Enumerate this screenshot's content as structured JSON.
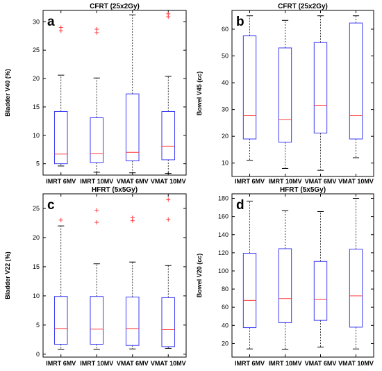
{
  "chart_data": [
    {
      "type": "box",
      "panel_letter": "a",
      "title": "CFRT (25x2Gy)",
      "ylabel": "Bladder V40 (%)",
      "categories": [
        "IMRT 6MV",
        "IMRT 10MV",
        "VMAT 6MV",
        "VMAT 10MV"
      ],
      "ylim": [
        3,
        32
      ],
      "yticks": [
        5,
        10,
        15,
        20,
        25,
        30
      ],
      "boxes": [
        {
          "min": 4.6,
          "q1": 5.0,
          "median": 6.7,
          "q3": 14.2,
          "max": 20.6,
          "outliers": [
            28.4,
            29.0
          ]
        },
        {
          "min": 3.5,
          "q1": 5.2,
          "median": 6.8,
          "q3": 13.1,
          "max": 20.1,
          "outliers": [
            28.1,
            28.7
          ]
        },
        {
          "min": 3.4,
          "q1": 5.5,
          "median": 7.0,
          "q3": 17.3,
          "max": 31.2,
          "outliers": []
        },
        {
          "min": 3.3,
          "q1": 5.7,
          "median": 8.1,
          "q3": 14.2,
          "max": 20.4,
          "outliers": [
            30.9,
            31.4
          ]
        }
      ]
    },
    {
      "type": "box",
      "panel_letter": "b",
      "title": "CFRT (25x2Gy)",
      "ylabel": "Bowel V45 (cc)",
      "categories": [
        "IMRT 6MV",
        "IMRT 10MV",
        "VMAT 6MV",
        "VMAT 10MV"
      ],
      "ylim": [
        5,
        67
      ],
      "yticks": [
        10,
        20,
        30,
        40,
        50,
        60
      ],
      "boxes": [
        {
          "min": 11.0,
          "q1": 19.0,
          "median": 27.7,
          "q3": 57.5,
          "max": 65.0,
          "outliers": []
        },
        {
          "min": 8.0,
          "q1": 17.8,
          "median": 26.2,
          "q3": 53.0,
          "max": 63.3,
          "outliers": []
        },
        {
          "min": 7.3,
          "q1": 21.2,
          "median": 31.6,
          "q3": 55.0,
          "max": 65.0,
          "outliers": []
        },
        {
          "min": 12.0,
          "q1": 19.0,
          "median": 27.7,
          "q3": 62.3,
          "max": 65.0,
          "outliers": []
        }
      ]
    },
    {
      "type": "box",
      "panel_letter": "c",
      "title": "HFRT (5x5Gy)",
      "ylabel": "Bladder V22 (%)",
      "categories": [
        "IMRT 6MV",
        "IMRT 10MV",
        "VMAT 6MV",
        "VMAT 10MV"
      ],
      "ylim": [
        -0.5,
        27.5
      ],
      "yticks": [
        0,
        5,
        10,
        15,
        20,
        25
      ],
      "boxes": [
        {
          "min": 0.8,
          "q1": 1.7,
          "median": 4.4,
          "q3": 9.9,
          "max": 22.0,
          "outliers": [
            23.0
          ]
        },
        {
          "min": 0.8,
          "q1": 1.7,
          "median": 4.3,
          "q3": 9.9,
          "max": 15.5,
          "outliers": [
            22.6,
            24.7
          ]
        },
        {
          "min": 0.9,
          "q1": 1.5,
          "median": 4.4,
          "q3": 9.8,
          "max": 15.8,
          "outliers": [
            22.9,
            23.4
          ]
        },
        {
          "min": 1.0,
          "q1": 1.3,
          "median": 4.2,
          "q3": 9.7,
          "max": 15.2,
          "outliers": [
            23.1,
            26.5
          ]
        }
      ]
    },
    {
      "type": "box",
      "panel_letter": "d",
      "title": "HFRT (5x5Gy)",
      "ylabel": "Bowel V20 (cc)",
      "categories": [
        "IMRT 6MV",
        "IMRT 10MV",
        "VMAT 6MV",
        "VMAT 10MV"
      ],
      "ylim": [
        5,
        185
      ],
      "yticks": [
        20,
        40,
        60,
        80,
        100,
        120,
        140,
        160,
        180
      ],
      "boxes": [
        {
          "min": 14.0,
          "q1": 37.5,
          "median": 67.5,
          "q3": 119.5,
          "max": 177.0,
          "outliers": []
        },
        {
          "min": 13.5,
          "q1": 43.0,
          "median": 69.5,
          "q3": 124.5,
          "max": 166.5,
          "outliers": []
        },
        {
          "min": 16.0,
          "q1": 45.5,
          "median": 68.5,
          "q3": 110.5,
          "max": 165.5,
          "outliers": []
        },
        {
          "min": 14.0,
          "q1": 38.0,
          "median": 72.5,
          "q3": 124.0,
          "max": 180.0,
          "outliers": []
        }
      ]
    }
  ],
  "colors": {
    "box": "#3b3bf5",
    "median": "#ff3b3b",
    "outlier": "#ff3b3b",
    "whisker": "#000000",
    "axes": "#000000"
  }
}
